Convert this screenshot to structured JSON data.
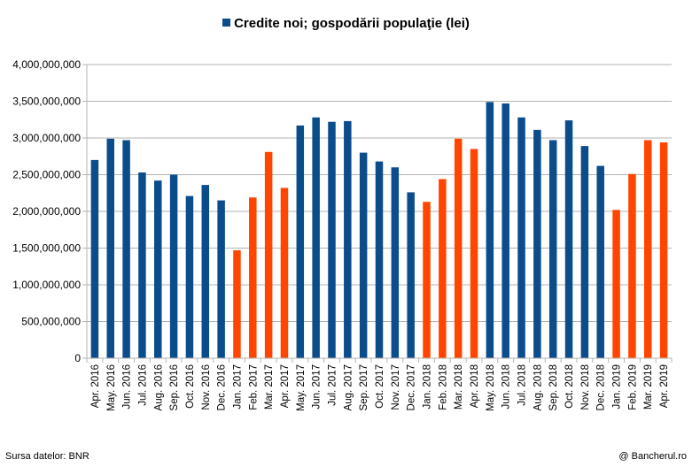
{
  "chart_data": {
    "type": "bar",
    "title": "",
    "legend_position": "top-center",
    "grid": true,
    "series": [
      {
        "name": "Credite noi; gospodării populaţie (lei)",
        "color": "#0b4c8b",
        "highlight_color": "#ff4500",
        "values": [
          2700000000,
          2990000000,
          2970000000,
          2530000000,
          2420000000,
          2500000000,
          2210000000,
          2360000000,
          2150000000,
          1470000000,
          2190000000,
          2810000000,
          2320000000,
          3170000000,
          3280000000,
          3220000000,
          3230000000,
          2800000000,
          2680000000,
          2600000000,
          2260000000,
          2130000000,
          2440000000,
          2990000000,
          2850000000,
          3490000000,
          3470000000,
          3280000000,
          3110000000,
          2970000000,
          3240000000,
          2890000000,
          2620000000,
          2020000000,
          2510000000,
          2970000000,
          2940000000
        ],
        "highlighted_indices": [
          9,
          10,
          11,
          12,
          21,
          22,
          23,
          24,
          33,
          34,
          35,
          36
        ]
      }
    ],
    "categories": [
      "Apr. 2016",
      "May. 2016",
      "Jun. 2016",
      "Jul. 2016",
      "Aug. 2016",
      "Sep. 2016",
      "Oct. 2016",
      "Nov. 2016",
      "Dec. 2016",
      "Jan. 2017",
      "Feb. 2017",
      "Mar. 2017",
      "Apr. 2017",
      "May. 2017",
      "Jun. 2017",
      "Jul. 2017",
      "Aug. 2017",
      "Sep. 2017",
      "Oct. 2017",
      "Nov. 2017",
      "Dec. 2017",
      "Jan. 2018",
      "Feb. 2018",
      "Mar. 2018",
      "Apr. 2018",
      "May. 2018",
      "Jun. 2018",
      "Jul. 2018",
      "Aug. 2018",
      "Sep. 2018",
      "Oct. 2018",
      "Nov. 2018",
      "Dec. 2018",
      "Jan. 2019",
      "Feb. 2019",
      "Mar. 2019",
      "Apr. 2019"
    ],
    "ylim": [
      0,
      4000000000
    ],
    "yticks": [
      0,
      500000000,
      1000000000,
      1500000000,
      2000000000,
      2500000000,
      3000000000,
      3500000000,
      4000000000
    ],
    "ytick_labels": [
      "0",
      "500,000,000",
      "1,000,000,000",
      "1,500,000,000",
      "2,000,000,000",
      "2,500,000,000",
      "3,000,000,000",
      "3,500,000,000",
      "4,000,000,000"
    ]
  },
  "footer": {
    "source": "Sursa datelor: BNR",
    "credit": "@ Bancherul.ro"
  }
}
